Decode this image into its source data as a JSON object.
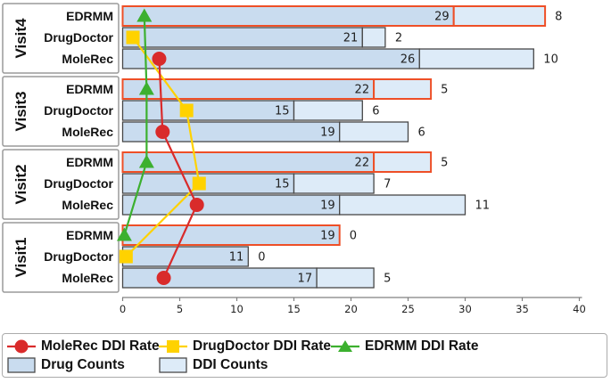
{
  "chart_data": {
    "type": "bar",
    "orientation": "horizontal",
    "groups": [
      "Visit4",
      "Visit3",
      "Visit2",
      "Visit1"
    ],
    "methods": [
      "EDRMM",
      "DrugDoctor",
      "MoleRec"
    ],
    "xlim": [
      0,
      40
    ],
    "xticks": [
      0,
      5,
      10,
      15,
      20,
      25,
      30,
      35,
      40
    ],
    "grid": false,
    "bar_series": [
      {
        "name": "Drug Counts",
        "color": "#c9dcef"
      },
      {
        "name": "DDI Counts",
        "color": "#ddebf8"
      }
    ],
    "bars": [
      {
        "group": "Visit4",
        "method": "EDRMM",
        "drug_counts": 29,
        "ddi_counts": 8,
        "highlight": true
      },
      {
        "group": "Visit4",
        "method": "DrugDoctor",
        "drug_counts": 21,
        "ddi_counts": 2,
        "highlight": false
      },
      {
        "group": "Visit4",
        "method": "MoleRec",
        "drug_counts": 26,
        "ddi_counts": 10,
        "highlight": false
      },
      {
        "group": "Visit3",
        "method": "EDRMM",
        "drug_counts": 22,
        "ddi_counts": 5,
        "highlight": true
      },
      {
        "group": "Visit3",
        "method": "DrugDoctor",
        "drug_counts": 15,
        "ddi_counts": 6,
        "highlight": false
      },
      {
        "group": "Visit3",
        "method": "MoleRec",
        "drug_counts": 19,
        "ddi_counts": 6,
        "highlight": false
      },
      {
        "group": "Visit2",
        "method": "EDRMM",
        "drug_counts": 22,
        "ddi_counts": 5,
        "highlight": true
      },
      {
        "group": "Visit2",
        "method": "DrugDoctor",
        "drug_counts": 15,
        "ddi_counts": 7,
        "highlight": false
      },
      {
        "group": "Visit2",
        "method": "MoleRec",
        "drug_counts": 19,
        "ddi_counts": 11,
        "highlight": false
      },
      {
        "group": "Visit1",
        "method": "EDRMM",
        "drug_counts": 19,
        "ddi_counts": 0,
        "highlight": true
      },
      {
        "group": "Visit1",
        "method": "DrugDoctor",
        "drug_counts": 11,
        "ddi_counts": 0,
        "highlight": false
      },
      {
        "group": "Visit1",
        "method": "MoleRec",
        "drug_counts": 17,
        "ddi_counts": 5,
        "highlight": false
      }
    ],
    "rate_lines": [
      {
        "name": "MoleRec DDI Rate",
        "method": "MoleRec",
        "marker": "circle",
        "color": "#d92b2b",
        "z": 2,
        "x_by_group": {
          "Visit4": 3.2,
          "Visit3": 3.5,
          "Visit2": 6.5,
          "Visit1": 3.6
        }
      },
      {
        "name": "DrugDoctor DDI Rate",
        "method": "DrugDoctor",
        "marker": "square",
        "color": "#ffd200",
        "z": 1,
        "x_by_group": {
          "Visit4": 0.9,
          "Visit3": 5.6,
          "Visit2": 6.7,
          "Visit1": 0.3
        }
      },
      {
        "name": "EDRMM DDI Rate",
        "method": "EDRMM",
        "marker": "triangle",
        "color": "#3cb02f",
        "z": 3,
        "x_by_group": {
          "Visit4": 1.9,
          "Visit3": 2.1,
          "Visit2": 2.1,
          "Visit1": 0.15
        }
      }
    ],
    "styles": {
      "highlight_edge": "#ee4f27",
      "bar_edge": "#474747",
      "axis_color": "#808080",
      "text_color": "#1f1f1f",
      "label_color": "#111111",
      "box_edge": "#9a9a9a"
    }
  },
  "legend": {
    "rate_items": [
      {
        "label": "MoleRec DDI Rate",
        "marker": "circle",
        "color": "#d92b2b"
      },
      {
        "label": "DrugDoctor DDI Rate",
        "marker": "square",
        "color": "#ffd200"
      },
      {
        "label": "EDRMM DDI Rate",
        "marker": "triangle",
        "color": "#3cb02f"
      }
    ],
    "count_items": [
      {
        "label": "Drug Counts",
        "color": "#c9dcef",
        "edge": "#4a4a4a"
      },
      {
        "label": "DDI Counts",
        "color": "#ddebf8",
        "edge": "#4a4a4a"
      }
    ]
  }
}
